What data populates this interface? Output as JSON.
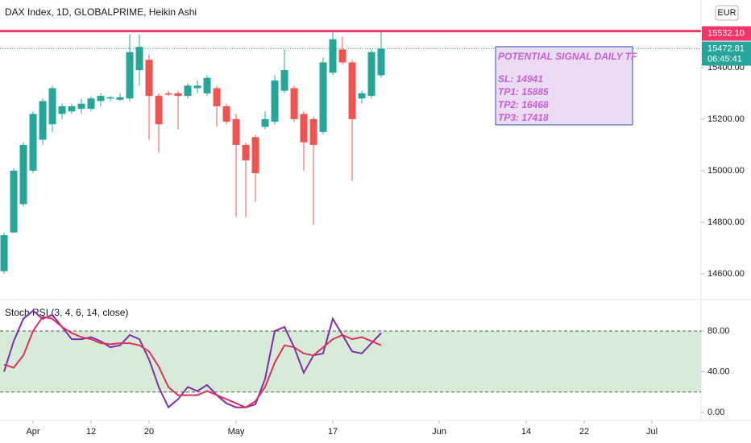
{
  "chart_data": [
    {
      "type": "candlestick",
      "title": "DAX Index, 1D, GLOBALPRIME, Heikin Ashi",
      "currency": "EUR",
      "up_color": "#26a69a",
      "down_color": "#ef5350",
      "open": [
        14610,
        14760,
        14870,
        15000,
        15120,
        15180,
        15220,
        15230,
        15240,
        15240,
        15270,
        15280,
        15275,
        15280,
        15390,
        15430,
        15290,
        15300,
        15300,
        15290,
        15320,
        15300,
        15320,
        15250,
        15200,
        15100,
        15130,
        15170,
        15190,
        15310,
        15320,
        15220,
        15200,
        15150,
        15380,
        15470,
        15420,
        15280,
        15290,
        15370
      ],
      "high": [
        14760,
        15010,
        15110,
        15230,
        15280,
        15330,
        15260,
        15260,
        15280,
        15290,
        15300,
        15290,
        15300,
        15530,
        15530,
        15450,
        15300,
        15310,
        15310,
        15340,
        15350,
        15370,
        15330,
        15260,
        15220,
        15110,
        15140,
        15230,
        15370,
        15470,
        15330,
        15230,
        15210,
        15440,
        15540,
        15520,
        15430,
        15310,
        15470,
        15540
      ],
      "low": [
        14600,
        14760,
        14860,
        14990,
        15100,
        15150,
        15200,
        15220,
        15220,
        15230,
        15250,
        15270,
        15270,
        15270,
        15330,
        15120,
        15070,
        15290,
        15160,
        15280,
        15300,
        15290,
        15170,
        15180,
        14820,
        14820,
        14880,
        15160,
        15180,
        15300,
        15190,
        15000,
        14790,
        15140,
        15370,
        15410,
        14960,
        15260,
        15280,
        15360
      ],
      "close": [
        14750,
        15000,
        15100,
        15220,
        15270,
        15320,
        15250,
        15250,
        15260,
        15280,
        15290,
        15285,
        15285,
        15460,
        15480,
        15290,
        15180,
        15295,
        15290,
        15330,
        15330,
        15360,
        15250,
        15190,
        15100,
        15040,
        14990,
        15200,
        15350,
        15390,
        15200,
        15110,
        15100,
        15420,
        15510,
        15420,
        15200,
        15300,
        15460,
        15472.81
      ],
      "xlim": [
        -0.42,
        72.08
      ],
      "ylim": [
        14506,
        15662
      ],
      "yticks": [
        {
          "value": 14600,
          "label": "14600.00"
        },
        {
          "value": 14800,
          "label": "14800.00"
        },
        {
          "value": 15000,
          "label": "15000.00"
        },
        {
          "value": 15200,
          "label": "15200.00"
        },
        {
          "value": 15400,
          "label": "15400.00"
        }
      ],
      "price_tags": [
        {
          "value": 15532.1,
          "label": "15532.10",
          "color": "#f23668"
        },
        {
          "value": 15472.81,
          "label": "15472.81",
          "countdown": "06:45:41",
          "color": "#26a69a"
        }
      ],
      "annotation": {
        "title": "POTENTIAL SIGNAL DAILY TF",
        "lines": [
          "SL: 14941",
          "TP1: 15885",
          "TP2: 16468",
          "TP3: 17418"
        ]
      }
    },
    {
      "type": "line",
      "title": "Stoch RSI (3, 4, 6, 14, close)",
      "series": [
        {
          "color": "#7e2fb1",
          "values": [
            40,
            70,
            92,
            100,
            92,
            96,
            84,
            72,
            72,
            74,
            70,
            64,
            66,
            76,
            72,
            52,
            25,
            5,
            13,
            25,
            21,
            27,
            17,
            9,
            5,
            5,
            8,
            33,
            80,
            84,
            64,
            39,
            56,
            58,
            92,
            76,
            60,
            58,
            68,
            78
          ]
        },
        {
          "color": "#e0315e",
          "values": [
            47,
            44,
            56,
            80,
            94,
            92,
            84,
            78,
            74,
            72,
            68,
            67,
            68,
            68,
            66,
            60,
            45,
            25,
            17,
            17,
            17,
            21,
            17,
            13,
            9,
            5,
            11,
            25,
            49,
            66,
            64,
            58,
            56,
            64,
            72,
            76,
            72,
            74,
            70,
            66
          ]
        }
      ],
      "bands": [
        20,
        80
      ],
      "band_color": "#c8e6c9",
      "xlim": [
        -0.42,
        72.08
      ],
      "ylim": [
        -7.9,
        108.5
      ],
      "yticks": [
        {
          "value": 0,
          "label": "0.00"
        },
        {
          "value": 40,
          "label": "40.00"
        },
        {
          "value": 80,
          "label": "80.00"
        }
      ],
      "xticks": [
        {
          "value": 3,
          "label": "Apr"
        },
        {
          "value": 9,
          "label": "12"
        },
        {
          "value": 15,
          "label": "20"
        },
        {
          "value": 24,
          "label": "May"
        },
        {
          "value": 34,
          "label": "17"
        },
        {
          "value": 45,
          "label": "Jun"
        },
        {
          "value": 54,
          "label": "14"
        },
        {
          "value": 60,
          "label": "22"
        },
        {
          "value": 67,
          "label": "Jul"
        }
      ]
    }
  ]
}
